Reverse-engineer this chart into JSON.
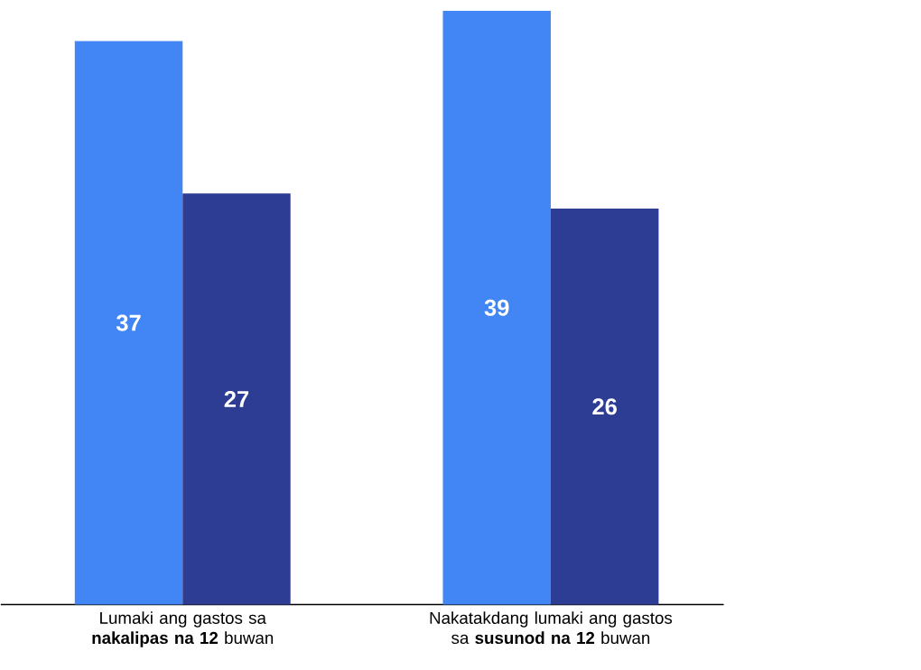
{
  "chart_data": {
    "type": "bar",
    "categories": [
      "Lumaki ang gastos sa **nakalipas na 12** buwan",
      "Nakatakdang lumaki ang gastos sa **susunod na 12** buwan"
    ],
    "series": [
      {
        "color": "#4285f4",
        "values": [
          37,
          39
        ]
      },
      {
        "color": "#2e3d94",
        "values": [
          27,
          26
        ]
      }
    ],
    "data_labels": true
  }
}
